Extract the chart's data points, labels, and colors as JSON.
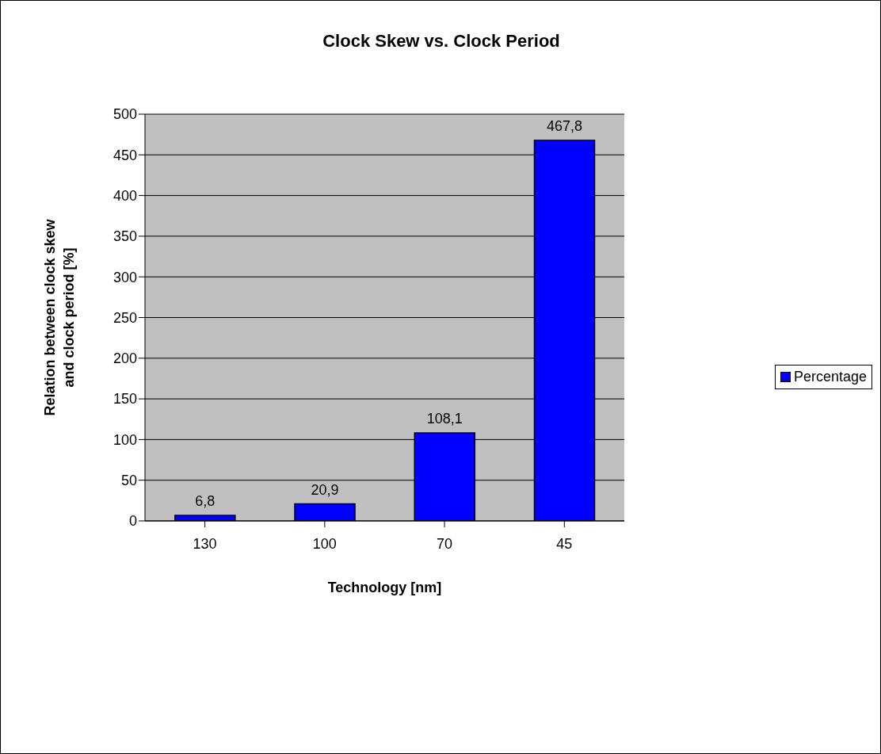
{
  "chart_data": {
    "type": "bar",
    "title": "Clock Skew vs. Clock Period",
    "xlabel": "Technology [nm]",
    "ylabel": "Relation between clock skew and clock period [%]",
    "categories": [
      "130",
      "100",
      "70",
      "45"
    ],
    "series": [
      {
        "name": "Percentage",
        "color": "#0000ff",
        "values": [
          6.8,
          20.9,
          108.1,
          467.8
        ],
        "value_labels": [
          "6,8",
          "20,9",
          "108,1",
          "467,8"
        ]
      }
    ],
    "ylim": [
      0,
      500
    ],
    "yticks": [
      0,
      50,
      100,
      150,
      200,
      250,
      300,
      350,
      400,
      450,
      500
    ],
    "grid": "y",
    "legend": "right"
  }
}
